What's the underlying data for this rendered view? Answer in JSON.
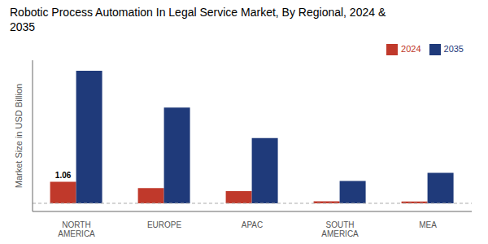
{
  "chart_data": {
    "type": "bar",
    "title": "Robotic Process Automation In Legal Service Market, By Regional, 2024 &\n2035",
    "ylabel": "Market Size in USD Billion",
    "categories": [
      "NORTH\nAMERICA",
      "EUROPE",
      "APAC",
      "SOUTH\nAMERICA",
      "MEA"
    ],
    "series": [
      {
        "name": "2024",
        "color": "#c0392b",
        "values": [
          1.06,
          0.75,
          0.6,
          0.1,
          0.09
        ]
      },
      {
        "name": "2035",
        "color": "#1f3a7a",
        "values": [
          6.5,
          4.7,
          3.2,
          1.1,
          1.5
        ]
      }
    ],
    "ylim": [
      -0.4,
      7.02
    ],
    "tick_labels": "x",
    "grid": false,
    "legend": "upper right",
    "annotations": [
      {
        "text": "1.06",
        "series": "2024",
        "category": "NORTH\nAMERICA"
      }
    ]
  }
}
